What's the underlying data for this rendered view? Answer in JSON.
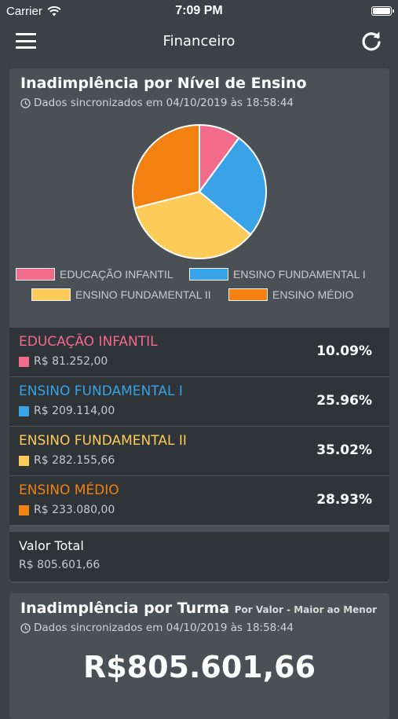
{
  "status_bar": {
    "carrier": "Carrier",
    "time": "7:09 PM"
  },
  "nav": {
    "title": "Financeiro"
  },
  "card1": {
    "title": "Inadimplência por Nível de Ensino",
    "sync_text": "Dados sincronizados em 04/10/2019 às 18:58:44",
    "legend": [
      {
        "label": "EDUCAÇÃO INFANTIL",
        "color": "#f26b8a"
      },
      {
        "label": "ENSINO FUNDAMENTAL I",
        "color": "#3aa3e8"
      },
      {
        "label": "ENSINO FUNDAMENTAL II",
        "color": "#fdcb5a"
      },
      {
        "label": "ENSINO MÉDIO",
        "color": "#f28112"
      }
    ],
    "rows": [
      {
        "label": "EDUCAÇÃO INFANTIL",
        "value": "R$ 81.252,00",
        "percent": "10.09%",
        "color": "#f26b8a"
      },
      {
        "label": "ENSINO FUNDAMENTAL I",
        "value": "R$ 209.114,00",
        "percent": "25.96%",
        "color": "#3aa3e8"
      },
      {
        "label": "ENSINO FUNDAMENTAL II",
        "value": "R$ 282.155,66",
        "percent": "35.02%",
        "color": "#fdcb5a"
      },
      {
        "label": "ENSINO MÉDIO",
        "value": "R$ 233.080,00",
        "percent": "28.93%",
        "color": "#f28112"
      }
    ],
    "total": {
      "label": "Valor Total",
      "value": "R$ 805.601,66"
    }
  },
  "chart_data": {
    "type": "pie",
    "categories": [
      "EDUCAÇÃO INFANTIL",
      "ENSINO FUNDAMENTAL I",
      "ENSINO FUNDAMENTAL II",
      "ENSINO MÉDIO"
    ],
    "values": [
      10.09,
      25.96,
      35.02,
      28.93
    ],
    "colors": [
      "#f26b8a",
      "#3aa3e8",
      "#fdcb5a",
      "#f28112"
    ],
    "title": "Inadimplência por Nível de Ensino",
    "legend_position": "bottom"
  },
  "card2": {
    "title": "Inadimplência por Turma",
    "subtitle": "Por Valor - Maior ao Menor",
    "sync_text": "Dados sincronizados em 04/10/2019 às 18:58:44",
    "big_value": "R$805.601,66"
  },
  "icons": {
    "menu": "hamburger-menu-icon",
    "refresh": "refresh-icon",
    "clock": "clock-icon",
    "wifi": "wifi-icon",
    "battery": "battery-icon"
  }
}
